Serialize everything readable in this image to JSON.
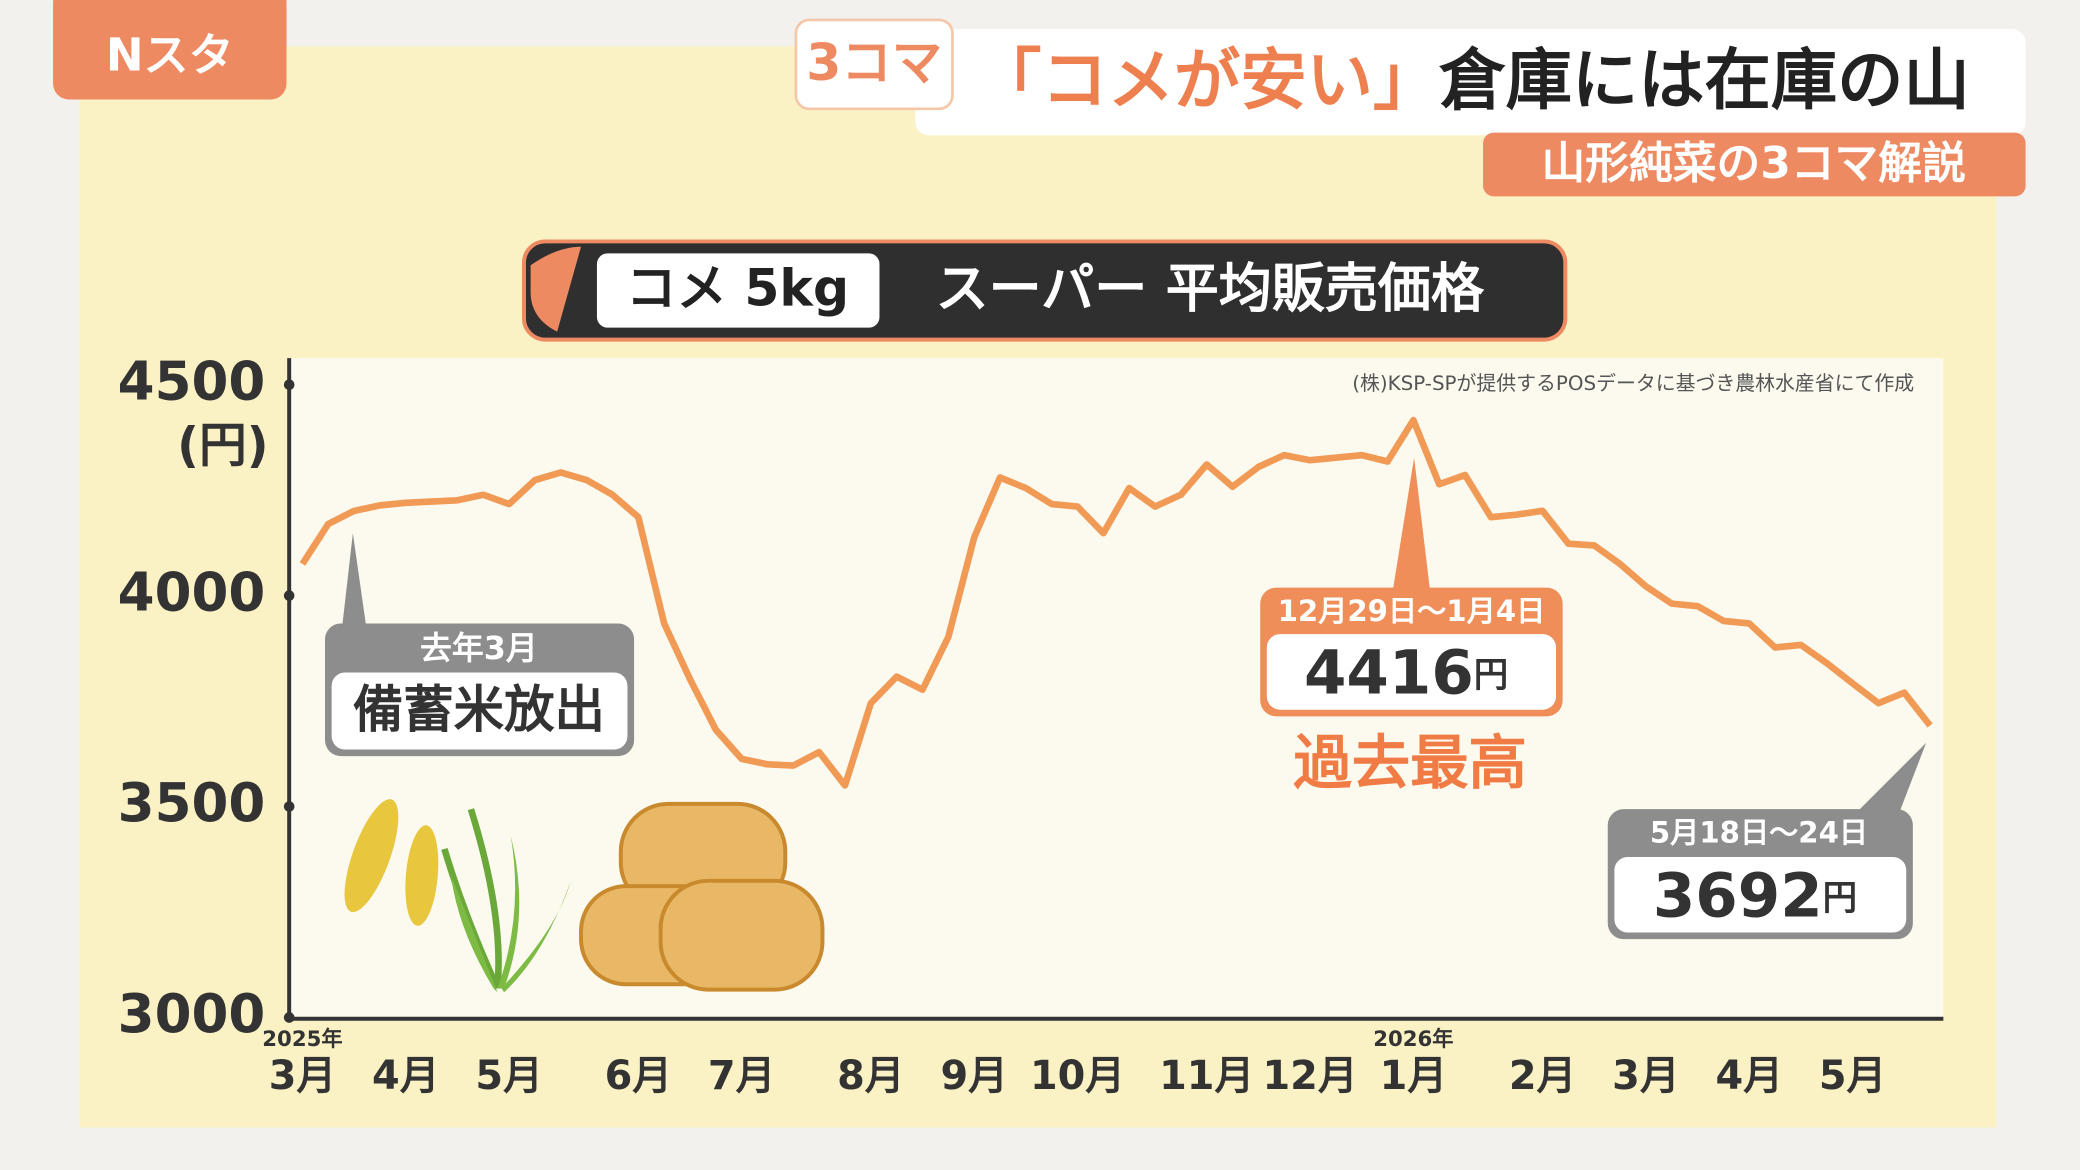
{
  "overlay": {
    "logo": "Nスタ",
    "segment": "3コマ",
    "title_highlight": "「コメが安い」",
    "title_rest": "倉庫には在庫の山",
    "subtitle": "山形純菜の3コマ解説"
  },
  "chart_data": {
    "type": "line",
    "title_tag": "コメ 5kg",
    "title": "スーパー 平均販売価格",
    "source": "(株)KSP-SPが提供するPOSデータに基づき農林水産省にて作成",
    "y_label": "(円)",
    "categories": [
      "3月",
      null,
      null,
      null,
      "4月",
      null,
      null,
      null,
      "5月",
      null,
      null,
      null,
      null,
      "6月",
      null,
      null,
      null,
      "7月",
      null,
      null,
      null,
      null,
      "8月",
      null,
      null,
      null,
      "9月",
      null,
      null,
      null,
      "10月",
      null,
      null,
      null,
      null,
      "11月",
      null,
      null,
      null,
      "12月",
      null,
      null,
      null,
      "1月",
      null,
      null,
      null,
      null,
      "2月",
      null,
      null,
      null,
      "3月",
      null,
      null,
      null,
      "4月",
      null,
      null,
      null,
      "5月",
      null,
      null,
      null
    ],
    "x_year_labels": [
      "2025年",
      null,
      null,
      null,
      null,
      null,
      null,
      null,
      null,
      null,
      null,
      null,
      null,
      null,
      null,
      null,
      null,
      null,
      null,
      null,
      null,
      null,
      null,
      null,
      null,
      null,
      null,
      null,
      null,
      null,
      null,
      null,
      null,
      null,
      null,
      null,
      null,
      null,
      null,
      null,
      null,
      null,
      null,
      "2026年",
      null,
      null,
      null,
      null,
      null,
      null,
      null,
      null,
      null,
      null,
      null,
      null,
      null,
      null,
      null,
      null,
      null,
      null,
      null,
      null
    ],
    "values": [
      4075,
      4170,
      4201,
      4214,
      4220,
      4223,
      4226,
      4239,
      4217,
      4274,
      4292,
      4274,
      4239,
      4186,
      3934,
      3802,
      3682,
      3613,
      3600,
      3597,
      3629,
      3550,
      3745,
      3808,
      3777,
      3902,
      4138,
      4280,
      4255,
      4217,
      4211,
      4148,
      4255,
      4211,
      4239,
      4311,
      4258,
      4305,
      4333,
      4321,
      4327,
      4333,
      4318,
      4416,
      4264,
      4286,
      4186,
      4192,
      4201,
      4123,
      4119,
      4075,
      4022,
      3981,
      3975,
      3940,
      3934,
      3877,
      3883,
      3840,
      3792,
      3745,
      3770,
      3692
    ],
    "color": "#f19a55",
    "ylim": [
      3000,
      4500
    ],
    "yticks": [
      3000,
      3500,
      4000,
      4500
    ],
    "grid": false,
    "value_unit": "円",
    "annotations": {
      "release_period": "去年3月",
      "release_text": "備蓄米放出",
      "peak_period": "12月29日～1月4日",
      "peak_note": "過去最高",
      "latest_period": "5月18日～24日"
    }
  }
}
